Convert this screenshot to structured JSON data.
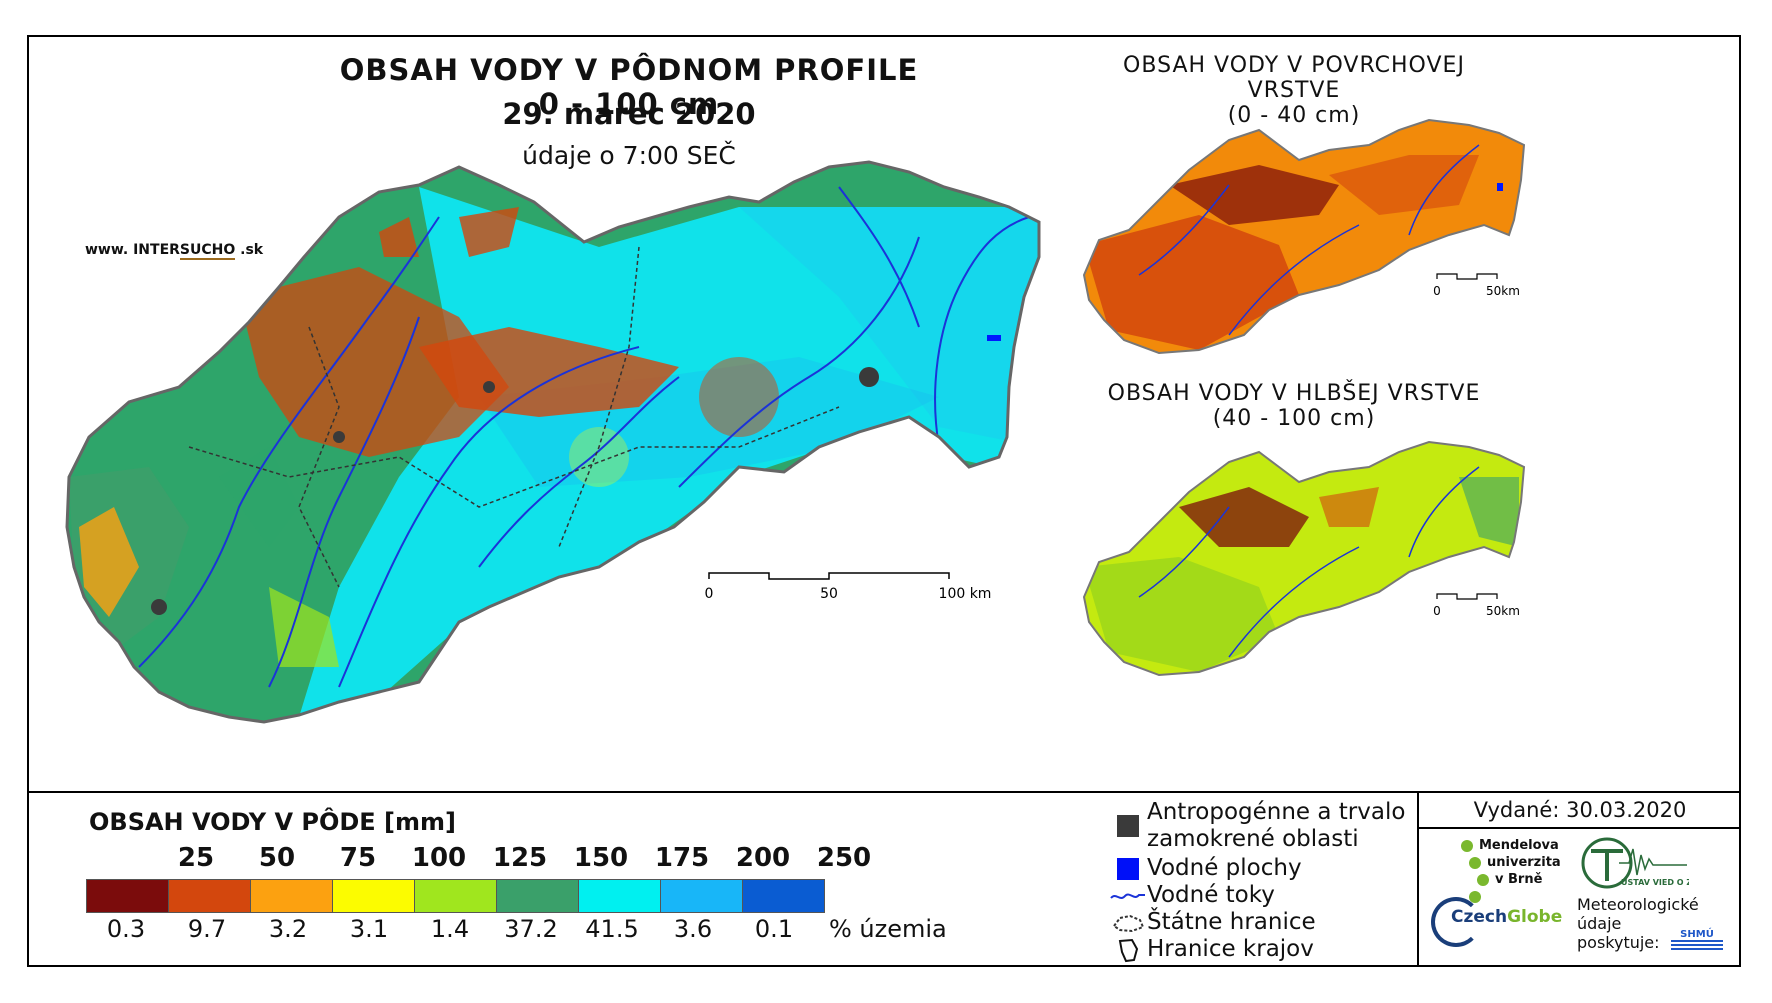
{
  "main": {
    "title": "OBSAH VODY V PÔDNOM PROFILE 0 - 100 cm",
    "date": "29. marec 2020",
    "time": "údaje o 7:00 SEČ",
    "web_prefix": "www. INTER",
    "web_mid": "SUCHO",
    "web_suffix": " .sk",
    "scale": {
      "labels": [
        "0",
        "50",
        "100 km"
      ]
    }
  },
  "top_map": {
    "title_line1": "OBSAH VODY V POVRCHOVEJ VRSTVE",
    "title_line2": "(0 - 40 cm)",
    "scale": {
      "labels": [
        "0",
        "50km"
      ]
    }
  },
  "bottom_map": {
    "title_line1": "OBSAH VODY V HLBŠEJ VRSTVE",
    "title_line2": "(40 - 100 cm)",
    "scale": {
      "labels": [
        "0",
        "50km"
      ]
    }
  },
  "legend": {
    "title": "OBSAH VODY V PÔDE [mm]",
    "thresholds": [
      "25",
      "50",
      "75",
      "100",
      "125",
      "150",
      "175",
      "200",
      "250"
    ],
    "colors": [
      "#7b0c0c",
      "#d3470d",
      "#fca110",
      "#fcfc00",
      "#a0e61e",
      "#3aa06a",
      "#00f0f0",
      "#18b6f8",
      "#0a5cd2"
    ],
    "percents": [
      "0.3",
      "9.7",
      "3.2",
      "3.1",
      "1.4",
      "37.2",
      "41.5",
      "3.6",
      "0.1"
    ],
    "unit": "% územia"
  },
  "key": {
    "items": [
      {
        "icon": "square-dark",
        "label_line1": "Antropogénne a trvalo",
        "label_line2": "zamokrené oblasti"
      },
      {
        "icon": "square-blue",
        "label_line1": "Vodné plochy"
      },
      {
        "icon": "river-line",
        "label_line1": "Vodné toky"
      },
      {
        "icon": "state-border",
        "label_line1": "Štátne hranice"
      },
      {
        "icon": "region-border",
        "label_line1": "Hranice krajov"
      }
    ]
  },
  "issued": {
    "label": "Vydané: 30.03.2020",
    "mendel": [
      "Mendelova",
      "univerzita",
      "v Brně"
    ],
    "ustav": "ÚSTAV VIED O ZEMI",
    "czechglobe_a": "Czech",
    "czechglobe_b": "Globe",
    "meteo": [
      "Meteorologické",
      "údaje",
      "poskytuje:"
    ],
    "shmu": "SHMÚ"
  }
}
